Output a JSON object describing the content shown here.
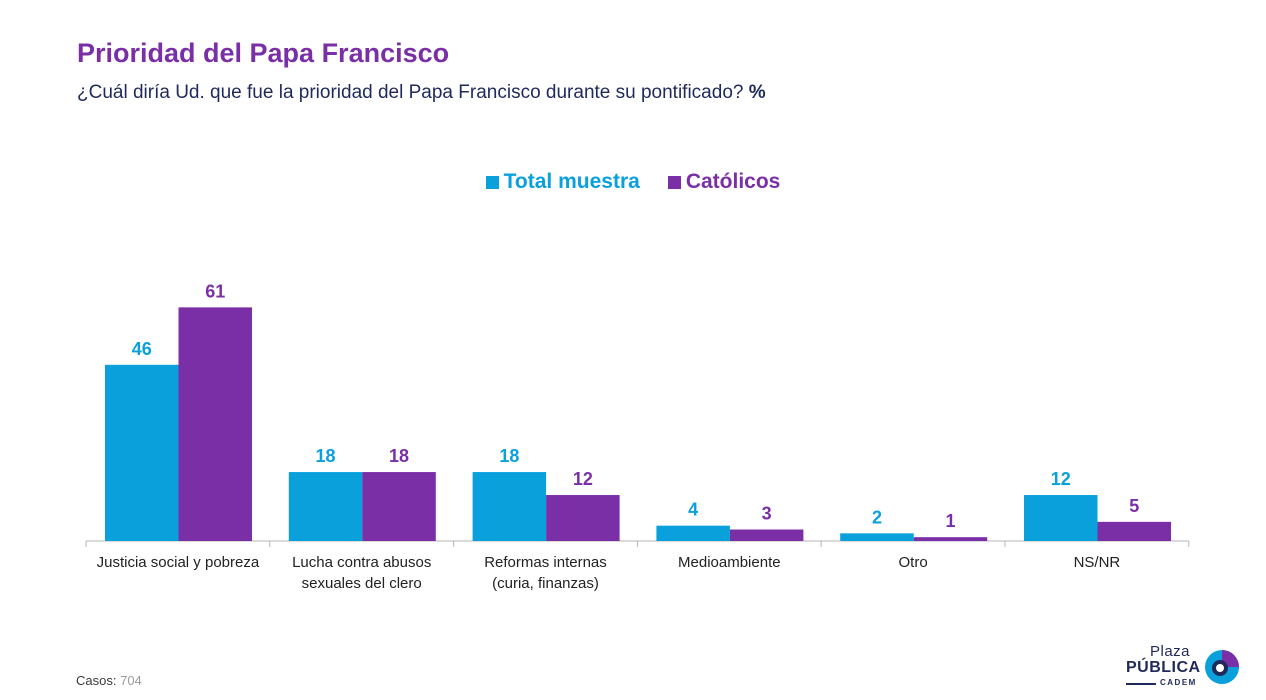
{
  "header": {
    "title": "Prioridad del Papa Francisco",
    "subtitle": "¿Cuál diría Ud. que fue la prioridad del Papa Francisco durante su pontificado?",
    "subtitle_unit": "%"
  },
  "colors": {
    "total": "#0aa0dc",
    "catolicos": "#7b2fa6",
    "title": "#7b2fa6",
    "text": "#1f2a5a"
  },
  "chart_data": {
    "type": "bar",
    "title": "Prioridad del Papa Francisco",
    "categories": [
      [
        "Justicia social y pobreza"
      ],
      [
        "Lucha contra abusos",
        "sexuales del clero"
      ],
      [
        "Reformas internas",
        "(curia, finanzas)"
      ],
      [
        "Medioambiente"
      ],
      [
        "Otro"
      ],
      [
        "NS/NR"
      ]
    ],
    "series": [
      {
        "name": "Total muestra",
        "values": [
          46,
          18,
          18,
          4,
          2,
          12
        ]
      },
      {
        "name": "Católicos",
        "values": [
          61,
          18,
          12,
          3,
          1,
          5
        ]
      }
    ],
    "ylim": [
      0,
      61
    ],
    "legend": "top-center",
    "grid": false
  },
  "footer": {
    "label": "Casos",
    "value": "704"
  },
  "logo": {
    "line1": "Plaza",
    "line2": "PÚBLICA",
    "line3": "CADEM",
    "icon": "plaza-publica-logo-icon"
  }
}
